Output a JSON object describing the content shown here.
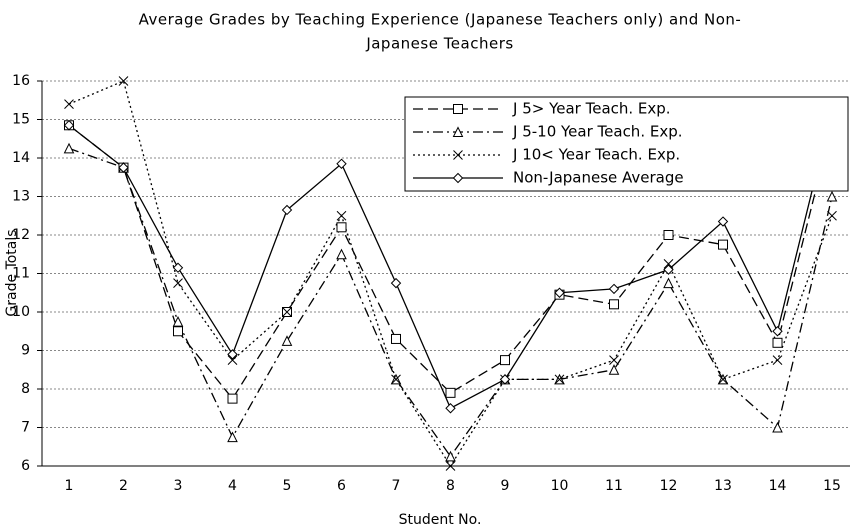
{
  "chart_data": {
    "type": "line",
    "title": [
      "Average Grades by Teaching Experience (Japanese Teachers only) and Non-",
      "Japanese Teachers"
    ],
    "x_label": "Student No.",
    "y_label": "Grade Totals",
    "categories": [
      "1",
      "2",
      "3",
      "4",
      "5",
      "6",
      "7",
      "8",
      "9",
      "10",
      "11",
      "12",
      "13",
      "14",
      "15"
    ],
    "ylim": [
      6,
      16
    ],
    "yticks": [
      6,
      7,
      8,
      9,
      10,
      11,
      12,
      13,
      14,
      15,
      16
    ],
    "grid": true,
    "legend": "upper-right",
    "series": [
      {
        "name": "J 5> Year Teach. Exp.",
        "color": "#000000",
        "dash": "10,5",
        "marker": "square",
        "values": [
          14.85,
          13.75,
          9.5,
          7.75,
          10.0,
          12.2,
          9.3,
          7.9,
          8.75,
          10.45,
          10.2,
          12.0,
          11.75,
          9.2,
          14.85
        ]
      },
      {
        "name": "J 5-10 Year Teach. Exp.",
        "color": "#000000",
        "dash": "10,4,2,4",
        "marker": "triangle",
        "values": [
          14.25,
          13.75,
          9.75,
          6.75,
          9.25,
          11.5,
          8.25,
          6.25,
          8.25,
          8.25,
          8.5,
          10.75,
          8.25,
          7.0,
          13.0
        ]
      },
      {
        "name": "J 10< Year Teach. Exp.",
        "color": "#000000",
        "dash": "2,3",
        "marker": "cross",
        "values": [
          15.4,
          16.0,
          10.75,
          8.75,
          10.0,
          12.5,
          8.25,
          6.0,
          8.25,
          8.25,
          8.75,
          11.25,
          8.25,
          8.75,
          12.5
        ]
      },
      {
        "name": "Non-Japanese Average",
        "color": "#000000",
        "dash": "",
        "marker": "diamond",
        "values": [
          14.85,
          13.75,
          11.15,
          8.9,
          12.65,
          13.85,
          10.75,
          7.5,
          8.25,
          10.5,
          10.6,
          11.1,
          12.35,
          9.5,
          15.25
        ]
      }
    ]
  }
}
